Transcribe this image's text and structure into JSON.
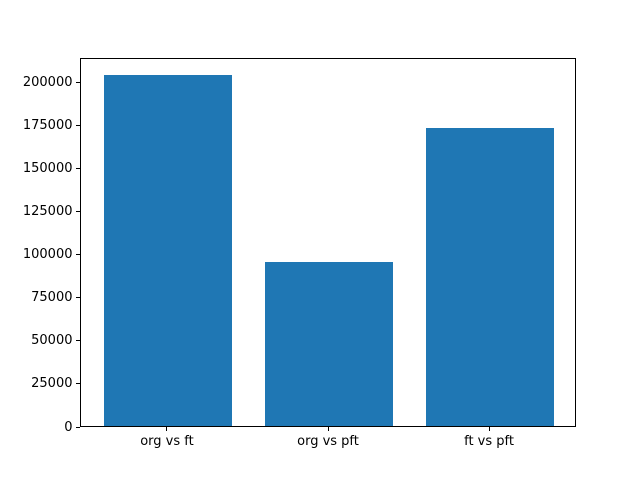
{
  "figure": {
    "background_color": "#ffffff",
    "bar_color": "#1f77b4",
    "axis_color": "#000000"
  },
  "chart_data": {
    "type": "bar",
    "title": "",
    "xlabel": "",
    "ylabel": "",
    "categories": [
      "org vs ft",
      "org vs pft",
      "ft vs pft"
    ],
    "values": [
      204000,
      95000,
      173000
    ],
    "ylim": [
      0,
      214200
    ],
    "yticks": [
      0,
      25000,
      50000,
      75000,
      100000,
      125000,
      150000,
      175000,
      200000
    ],
    "ytick_labels": [
      "0",
      "25000",
      "50000",
      "75000",
      "100000",
      "125000",
      "150000",
      "175000",
      "200000"
    ],
    "grid": false,
    "legend": null,
    "bar_rel_width": 0.8
  }
}
